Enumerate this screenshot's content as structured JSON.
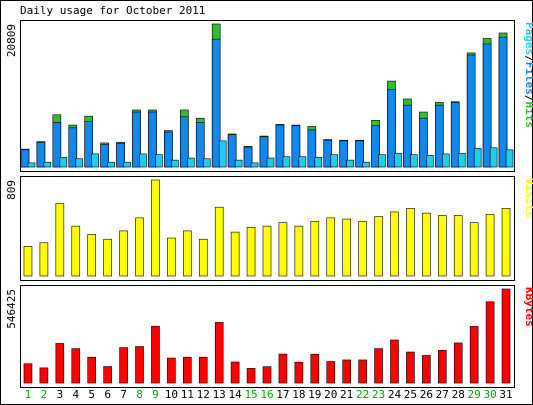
{
  "chart_data": [
    {
      "type": "bar",
      "panel": "hits_files_pages",
      "title": "Daily usage for October 2011",
      "ylabel": "20809",
      "legend": [
        "Pages",
        "/",
        "Files",
        "/",
        "Hits"
      ],
      "ylim": [
        0,
        20809
      ],
      "categories": [
        "1",
        "2",
        "3",
        "4",
        "5",
        "6",
        "7",
        "8",
        "9",
        "10",
        "11",
        "12",
        "13",
        "14",
        "15",
        "16",
        "17",
        "18",
        "19",
        "20",
        "21",
        "22",
        "23",
        "24",
        "25",
        "26",
        "27",
        "28",
        "29",
        "30",
        "31"
      ],
      "series": [
        {
          "name": "Hits",
          "values": [
            2600,
            3700,
            7600,
            6100,
            7400,
            3500,
            3600,
            8300,
            8300,
            5300,
            8300,
            7100,
            20809,
            4800,
            3000,
            4500,
            6200,
            6100,
            5900,
            4000,
            3900,
            3900,
            6800,
            12500,
            9900,
            8000,
            9400,
            9500,
            16600,
            18700,
            19500
          ]
        },
        {
          "name": "Files",
          "values": [
            2500,
            3600,
            6500,
            5700,
            6600,
            3300,
            3400,
            8000,
            8000,
            5100,
            7300,
            6500,
            18600,
            4700,
            2900,
            4400,
            6100,
            6000,
            5400,
            3900,
            3800,
            3800,
            6000,
            11300,
            9000,
            7100,
            9000,
            9400,
            16300,
            17900,
            18900
          ]
        },
        {
          "name": "Pages",
          "values": [
            600,
            700,
            1400,
            1200,
            1900,
            700,
            700,
            1900,
            1800,
            1000,
            1300,
            1200,
            3800,
            1000,
            600,
            1300,
            1500,
            1500,
            1400,
            1800,
            1000,
            700,
            1800,
            2000,
            1800,
            1700,
            1900,
            2000,
            2700,
            2800,
            2500
          ]
        }
      ],
      "colors": {
        "Hits": "#33bb33",
        "Files": "#1188ee",
        "Pages": "#22ccee"
      }
    },
    {
      "type": "bar",
      "panel": "visits",
      "ylabel": "809",
      "legend": [
        "Visits"
      ],
      "ylim": [
        0,
        809
      ],
      "categories": [
        "1",
        "2",
        "3",
        "4",
        "5",
        "6",
        "7",
        "8",
        "9",
        "10",
        "11",
        "12",
        "13",
        "14",
        "15",
        "16",
        "17",
        "18",
        "19",
        "20",
        "21",
        "22",
        "23",
        "24",
        "25",
        "26",
        "27",
        "28",
        "29",
        "30",
        "31"
      ],
      "series": [
        {
          "name": "Visits",
          "values": [
            250,
            280,
            610,
            420,
            350,
            310,
            380,
            490,
            809,
            320,
            380,
            310,
            580,
            370,
            410,
            420,
            450,
            420,
            460,
            490,
            480,
            460,
            500,
            540,
            570,
            530,
            510,
            510,
            450,
            520,
            570
          ]
        }
      ],
      "colors": {
        "Visits": "#ffff00"
      }
    },
    {
      "type": "bar",
      "panel": "kbytes",
      "ylabel": "546425",
      "legend": [
        "KBytes"
      ],
      "ylim": [
        0,
        546425
      ],
      "categories": [
        "1",
        "2",
        "3",
        "4",
        "5",
        "6",
        "7",
        "8",
        "9",
        "10",
        "11",
        "12",
        "13",
        "14",
        "15",
        "16",
        "17",
        "18",
        "19",
        "20",
        "21",
        "22",
        "23",
        "24",
        "25",
        "26",
        "27",
        "28",
        "29",
        "30",
        "31"
      ],
      "series": [
        {
          "name": "KBytes",
          "values": [
            112000,
            88000,
            230000,
            200000,
            150000,
            96000,
            206000,
            212000,
            330000,
            145000,
            150000,
            150000,
            352000,
            122000,
            85000,
            95000,
            168000,
            121000,
            167000,
            125000,
            134000,
            134000,
            200000,
            250000,
            180000,
            160000,
            190000,
            233000,
            329000,
            472000,
            546425
          ]
        }
      ],
      "colors": {
        "KBytes": "#ff0000"
      }
    }
  ],
  "xaxis": {
    "labels": [
      "1",
      "2",
      "3",
      "4",
      "5",
      "6",
      "7",
      "8",
      "9",
      "10",
      "11",
      "12",
      "13",
      "14",
      "15",
      "16",
      "17",
      "18",
      "19",
      "20",
      "21",
      "22",
      "23",
      "24",
      "25",
      "26",
      "27",
      "28",
      "29",
      "30",
      "31"
    ],
    "weekend_days": [
      1,
      2,
      8,
      9,
      15,
      16,
      22,
      23,
      29,
      30
    ],
    "weekend_color": "#00aa00",
    "weekday_color": "#000000"
  },
  "colors": {
    "frame": "#000000",
    "panel_bg": "#ffffff",
    "page_bg": "#ffffff",
    "bar_outline": "#000000"
  }
}
